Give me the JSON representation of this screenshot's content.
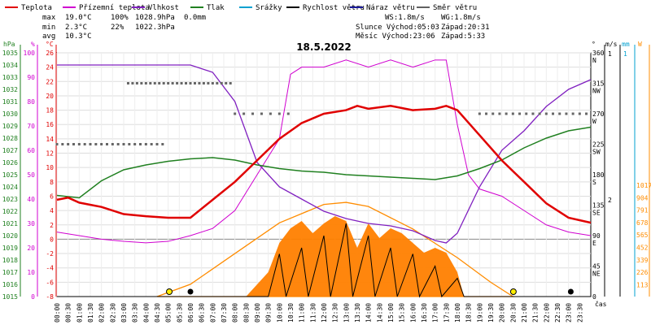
{
  "chart_data": {
    "type": "line",
    "title": "18.5.2022",
    "legend": [
      {
        "name": "Teplota",
        "color": "#e00000"
      },
      {
        "name": "Přízemní teplota",
        "color": "#d000d0"
      },
      {
        "name": "Vlhkost",
        "color": "#8020c0"
      },
      {
        "name": "Tlak",
        "color": "#208020"
      },
      {
        "name": "Srážky",
        "color": "#00a0d0"
      },
      {
        "name": "Rychlost větru",
        "color": "#000000"
      },
      {
        "name": "Náraz větru",
        "color": "#1a1a9a"
      },
      {
        "name": "Směr větru",
        "color": "#606060"
      }
    ],
    "stats": {
      "max_label": "max",
      "max_temp": "19.0°C",
      "max_hum": "100%",
      "max_press": "1028.9hPa",
      "max_rain": "0.0mm",
      "min_label": "min",
      "min_temp": "2.3°C",
      "min_hum": "22%",
      "min_press": "1022.3hPa",
      "avg_label": "avg",
      "avg_temp": "10.3°C"
    },
    "info": {
      "ws": "WS:1.8m/s",
      "wg": "WG:1.8m/s",
      "sun": "Slunce Východ:05:03",
      "sun_set": "Západ:20:31",
      "moon": "Měsíc Východ:23:06",
      "moon_set": "Západ:5:33"
    },
    "axis_units": {
      "hpa": "hPa",
      "pct": "%",
      "degc": "°C",
      "deg": "°",
      "ms": "m/s",
      "mm": "mm",
      "w": "W",
      "time": "čas"
    },
    "x_ticks": [
      "00:00",
      "00:30",
      "01:00",
      "01:30",
      "02:00",
      "02:30",
      "03:00",
      "03:30",
      "04:00",
      "04:30",
      "05:00",
      "05:30",
      "06:00",
      "06:30",
      "07:00",
      "07:30",
      "08:00",
      "08:30",
      "09:00",
      "09:30",
      "10:00",
      "10:30",
      "11:00",
      "11:30",
      "12:00",
      "12:30",
      "13:00",
      "13:30",
      "14:00",
      "14:30",
      "15:00",
      "15:30",
      "16:00",
      "16:30",
      "17:00",
      "17:30",
      "18:00",
      "18:30",
      "19:00",
      "19:30",
      "20:00",
      "20:30",
      "21:00",
      "21:30",
      "22:00",
      "22:30",
      "23:00",
      "23:30"
    ],
    "y_temp_ticks": [
      26,
      24,
      22,
      20,
      18,
      16,
      14,
      12,
      10,
      8,
      6,
      4,
      2,
      0,
      -2,
      -4,
      -6,
      -8
    ],
    "y_temp_range": [
      -8,
      26
    ],
    "y_pct_ticks": [
      100,
      90,
      80,
      70,
      60,
      50,
      40,
      30,
      20,
      10,
      0
    ],
    "y_hpa_ticks": [
      1035,
      1034,
      1033,
      1032,
      1031,
      1030,
      1029,
      1028,
      1027,
      1026,
      1025,
      1024,
      1023,
      1022,
      1021,
      1020,
      1019,
      1018,
      1017,
      1016,
      1015
    ],
    "y_dir_ticks": [
      {
        "v": "360",
        "l": "N"
      },
      {
        "v": "315",
        "l": "NW"
      },
      {
        "v": "270",
        "l": "W"
      },
      {
        "v": "225",
        "l": "SW"
      },
      {
        "v": "180",
        "l": "S"
      },
      {
        "v": "135",
        "l": "SE"
      },
      {
        "v": "90",
        "l": "E"
      },
      {
        "v": "45",
        "l": "NE"
      },
      {
        "v": "0",
        "l": ""
      }
    ],
    "y_ms_ticks": [
      "2",
      "1"
    ],
    "y_mm_ticks": [
      "1"
    ],
    "y_w_ticks": [
      1017,
      904,
      791,
      678,
      565,
      452,
      339,
      226,
      113
    ],
    "series": {
      "temperature": [
        [
          0,
          5.5
        ],
        [
          0.5,
          5.8
        ],
        [
          1,
          5.1
        ],
        [
          2,
          4.5
        ],
        [
          3,
          3.5
        ],
        [
          4,
          3.2
        ],
        [
          5,
          3
        ],
        [
          6,
          3
        ],
        [
          7,
          5.5
        ],
        [
          8,
          8
        ],
        [
          9,
          11
        ],
        [
          10,
          14
        ],
        [
          11,
          16.2
        ],
        [
          12,
          17.5
        ],
        [
          13,
          18
        ],
        [
          13.5,
          18.6
        ],
        [
          14,
          18.2
        ],
        [
          15,
          18.6
        ],
        [
          16,
          18
        ],
        [
          17,
          18.2
        ],
        [
          17.5,
          18.6
        ],
        [
          18,
          18
        ],
        [
          19,
          14.5
        ],
        [
          20,
          11
        ],
        [
          21,
          8
        ],
        [
          22,
          5
        ],
        [
          23,
          3
        ],
        [
          24,
          2.3
        ]
      ],
      "ground_temperature": [
        [
          0,
          1
        ],
        [
          1,
          0.5
        ],
        [
          2,
          0
        ],
        [
          3,
          -0.3
        ],
        [
          4,
          -0.5
        ],
        [
          5,
          -0.3
        ],
        [
          6,
          0.5
        ],
        [
          7,
          1.5
        ],
        [
          8,
          4
        ],
        [
          9,
          9
        ],
        [
          10,
          14
        ],
        [
          10.5,
          23
        ],
        [
          11,
          24
        ],
        [
          12,
          24
        ],
        [
          13,
          25
        ],
        [
          14,
          24
        ],
        [
          15,
          25
        ],
        [
          16,
          24
        ],
        [
          17,
          25
        ],
        [
          17.5,
          25
        ],
        [
          18,
          16
        ],
        [
          18.5,
          9
        ],
        [
          19,
          7
        ],
        [
          20,
          6
        ],
        [
          21,
          4
        ],
        [
          22,
          2
        ],
        [
          23,
          1
        ],
        [
          24,
          0.5
        ]
      ],
      "humidity": [
        [
          0,
          95
        ],
        [
          2,
          95
        ],
        [
          4,
          95
        ],
        [
          6,
          95
        ],
        [
          7,
          92
        ],
        [
          8,
          80
        ],
        [
          9,
          55
        ],
        [
          10,
          45
        ],
        [
          11,
          40
        ],
        [
          12,
          35
        ],
        [
          13,
          32
        ],
        [
          14,
          30
        ],
        [
          15,
          29
        ],
        [
          16,
          27
        ],
        [
          17,
          23
        ],
        [
          17.5,
          22
        ],
        [
          18,
          26
        ],
        [
          19,
          45
        ],
        [
          20,
          60
        ],
        [
          21,
          68
        ],
        [
          22,
          78
        ],
        [
          23,
          85
        ],
        [
          24,
          89
        ]
      ],
      "pressure": [
        [
          0,
          1023.3
        ],
        [
          1,
          1023.1
        ],
        [
          2,
          1024.5
        ],
        [
          3,
          1025.4
        ],
        [
          4,
          1025.8
        ],
        [
          5,
          1026.1
        ],
        [
          6,
          1026.3
        ],
        [
          7,
          1026.4
        ],
        [
          8,
          1026.2
        ],
        [
          9,
          1025.8
        ],
        [
          10,
          1025.5
        ],
        [
          11,
          1025.3
        ],
        [
          12,
          1025.2
        ],
        [
          13,
          1025
        ],
        [
          14,
          1024.9
        ],
        [
          15,
          1024.8
        ],
        [
          16,
          1024.7
        ],
        [
          17,
          1024.6
        ],
        [
          18,
          1024.9
        ],
        [
          19,
          1025.5
        ],
        [
          20,
          1026.2
        ],
        [
          21,
          1027.2
        ],
        [
          22,
          1028
        ],
        [
          23,
          1028.6
        ],
        [
          24,
          1028.9
        ]
      ],
      "wind_speed": [
        [
          0,
          0
        ],
        [
          9.5,
          0
        ],
        [
          10,
          3.5
        ],
        [
          10.3,
          0
        ],
        [
          11,
          4
        ],
        [
          11.3,
          0
        ],
        [
          12,
          5
        ],
        [
          12.3,
          0
        ],
        [
          13,
          6
        ],
        [
          13.3,
          0
        ],
        [
          14,
          5
        ],
        [
          14.3,
          0
        ],
        [
          15,
          4
        ],
        [
          15.3,
          0
        ],
        [
          16,
          3.5
        ],
        [
          16.3,
          0
        ],
        [
          17,
          2.5
        ],
        [
          17.3,
          0
        ],
        [
          18,
          1.5
        ],
        [
          18.3,
          0
        ],
        [
          24,
          0
        ]
      ],
      "solar": [
        [
          4.5,
          0
        ],
        [
          6,
          0.12
        ],
        [
          8,
          0.42
        ],
        [
          10,
          0.72
        ],
        [
          12,
          0.9
        ],
        [
          13,
          0.92
        ],
        [
          14,
          0.88
        ],
        [
          16,
          0.66
        ],
        [
          18,
          0.38
        ],
        [
          19.5,
          0.14
        ],
        [
          20.5,
          0
        ]
      ]
    }
  }
}
